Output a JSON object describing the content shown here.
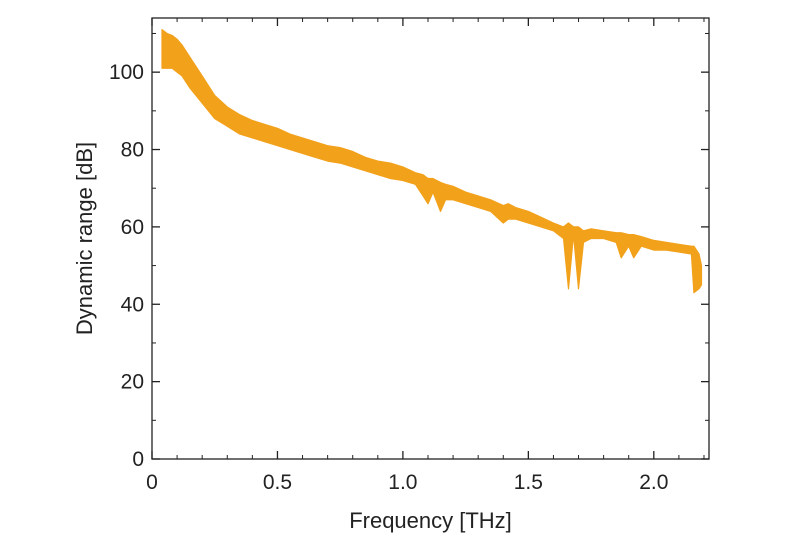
{
  "chart_data": {
    "type": "area",
    "title": "",
    "xlabel": "Frequency [THz]",
    "ylabel": "Dynamic range [dB]",
    "xlim": [
      0,
      2.22
    ],
    "ylim": [
      0,
      114
    ],
    "grid": false,
    "legend": "none",
    "x_ticks": [
      {
        "value": 0,
        "label": "0"
      },
      {
        "value": 0.5,
        "label": "0.5"
      },
      {
        "value": 1.0,
        "label": "1.0"
      },
      {
        "value": 1.5,
        "label": "1.5"
      },
      {
        "value": 2.0,
        "label": "2.0"
      }
    ],
    "y_ticks": [
      {
        "value": 0,
        "label": "0"
      },
      {
        "value": 20,
        "label": "20"
      },
      {
        "value": 40,
        "label": "40"
      },
      {
        "value": 60,
        "label": "60"
      },
      {
        "value": 80,
        "label": "80"
      },
      {
        "value": 100,
        "label": "100"
      }
    ],
    "series": [
      {
        "color": "#F2A11B",
        "x": [
          0.04,
          0.06,
          0.08,
          0.1,
          0.12,
          0.15,
          0.2,
          0.25,
          0.3,
          0.35,
          0.4,
          0.45,
          0.5,
          0.55,
          0.6,
          0.65,
          0.7,
          0.75,
          0.8,
          0.85,
          0.9,
          0.95,
          1.0,
          1.05,
          1.08,
          1.1,
          1.12,
          1.15,
          1.17,
          1.2,
          1.25,
          1.3,
          1.35,
          1.4,
          1.42,
          1.45,
          1.5,
          1.55,
          1.6,
          1.64,
          1.66,
          1.68,
          1.7,
          1.72,
          1.75,
          1.8,
          1.85,
          1.87,
          1.9,
          1.92,
          1.95,
          2.0,
          2.05,
          2.1,
          2.15,
          2.16,
          2.18,
          2.19
        ],
        "upper": [
          111,
          110,
          109.5,
          108.5,
          107,
          104,
          99,
          94,
          91,
          89,
          87.5,
          86.5,
          85.5,
          84,
          83,
          82,
          81,
          80.5,
          79.5,
          78,
          77,
          76.5,
          75.5,
          74,
          73.5,
          72.5,
          72.5,
          71.5,
          71,
          70.5,
          69,
          68,
          67,
          65.5,
          66,
          65,
          64,
          62.5,
          61,
          60,
          61,
          60,
          60,
          59,
          59.5,
          59,
          58.5,
          58.5,
          58,
          58,
          57.5,
          56.5,
          56,
          55.5,
          55,
          55,
          53,
          50
        ],
        "lower": [
          101,
          101,
          101,
          100,
          99,
          96,
          92,
          88,
          86,
          84,
          83,
          82,
          81,
          80,
          79,
          78,
          77,
          76.5,
          75.5,
          74.5,
          73.5,
          72.5,
          72,
          71,
          68,
          66,
          69,
          64,
          67,
          67,
          66,
          65,
          64,
          61,
          62,
          62,
          61,
          60,
          59,
          57,
          44,
          58,
          44,
          56,
          57,
          57,
          56,
          52,
          55,
          52,
          55,
          54,
          54,
          53.5,
          53,
          43,
          44,
          45
        ]
      }
    ]
  }
}
